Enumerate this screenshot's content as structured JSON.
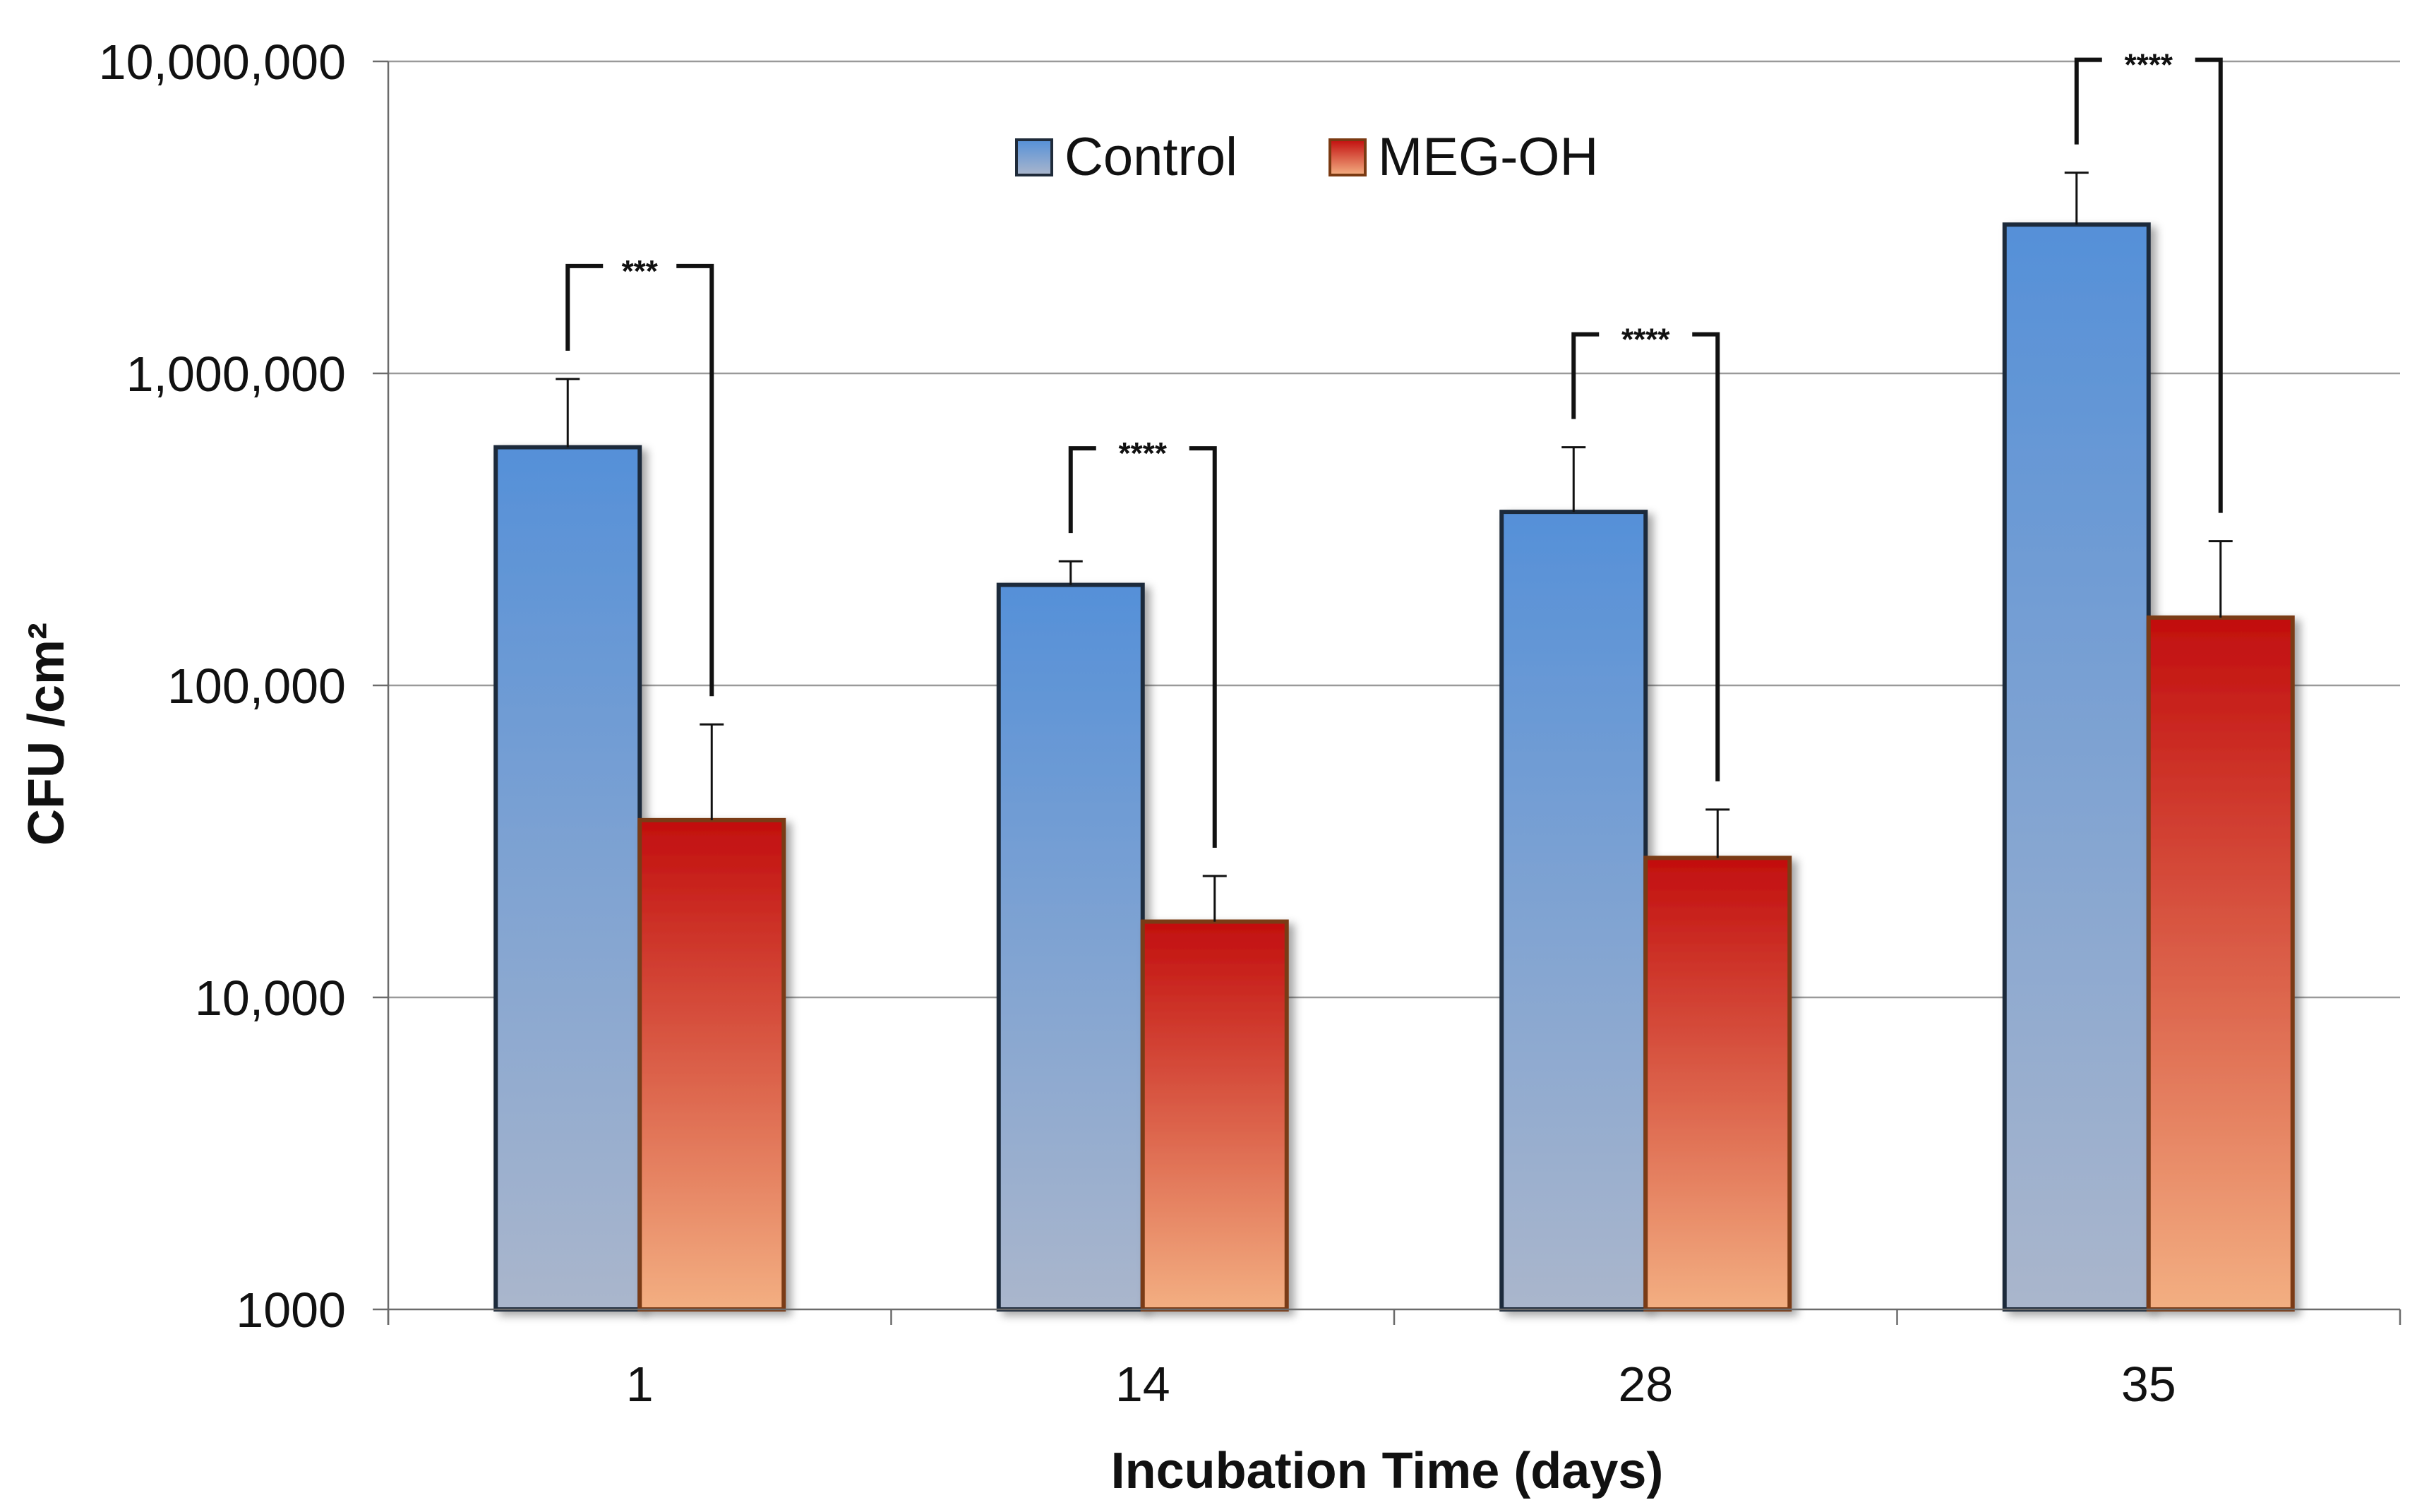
{
  "chart_data": {
    "type": "bar",
    "title": "",
    "xlabel": "Incubation Time (days)",
    "ylabel": "CFU /cm²",
    "yscale": "log",
    "ylim": [
      1000,
      10000000
    ],
    "ytick_values": [
      1000,
      10000,
      100000,
      1000000,
      10000000
    ],
    "ytick_labels": [
      "1000",
      "10,000",
      "100,000",
      "1,000,000",
      "10,000,000"
    ],
    "categories": [
      "1",
      "14",
      "28",
      "35"
    ],
    "grid": "horizontal",
    "legend_position": "top-center",
    "series": [
      {
        "name": "Control",
        "values": [
          580000,
          210000,
          360000,
          3000000
        ],
        "error_upper": [
          960000,
          250000,
          580000,
          4400000
        ],
        "color_top": "#5590D8",
        "color_bottom": "#AAB6CC",
        "border": "#1F2B3A"
      },
      {
        "name": "MEG-OH",
        "values": [
          37000,
          17500,
          28000,
          165000
        ],
        "error_upper": [
          75000,
          24500,
          40000,
          290000
        ],
        "color_top": "#C20E0E",
        "color_bottom": "#F3AF82",
        "border": "#7A3A12"
      }
    ],
    "significance": [
      "***",
      "****",
      "****",
      "****"
    ]
  }
}
